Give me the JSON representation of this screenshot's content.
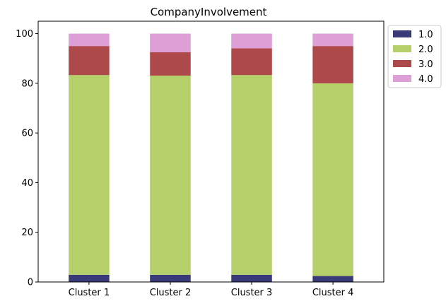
{
  "chart_data": {
    "type": "bar",
    "stacked": true,
    "title": "CompanyInvolvement",
    "xlabel": "",
    "ylabel": "",
    "categories": [
      "Cluster 1",
      "Cluster 2",
      "Cluster 3",
      "Cluster 4"
    ],
    "ylim": [
      0,
      105
    ],
    "yticks": [
      0,
      20,
      40,
      60,
      80,
      100
    ],
    "grid": false,
    "legend_position": "outside-top-right",
    "series": [
      {
        "name": "1.0",
        "color": "#393b79",
        "values": [
          2.9,
          2.9,
          2.9,
          2.4
        ]
      },
      {
        "name": "2.0",
        "color": "#b5cf6b",
        "values": [
          80.4,
          80.2,
          80.4,
          77.6
        ]
      },
      {
        "name": "3.0",
        "color": "#ad494a",
        "values": [
          11.7,
          9.4,
          10.8,
          15.0
        ]
      },
      {
        "name": "4.0",
        "color": "#de9ed6",
        "values": [
          5.0,
          7.5,
          5.9,
          5.0
        ]
      }
    ]
  }
}
